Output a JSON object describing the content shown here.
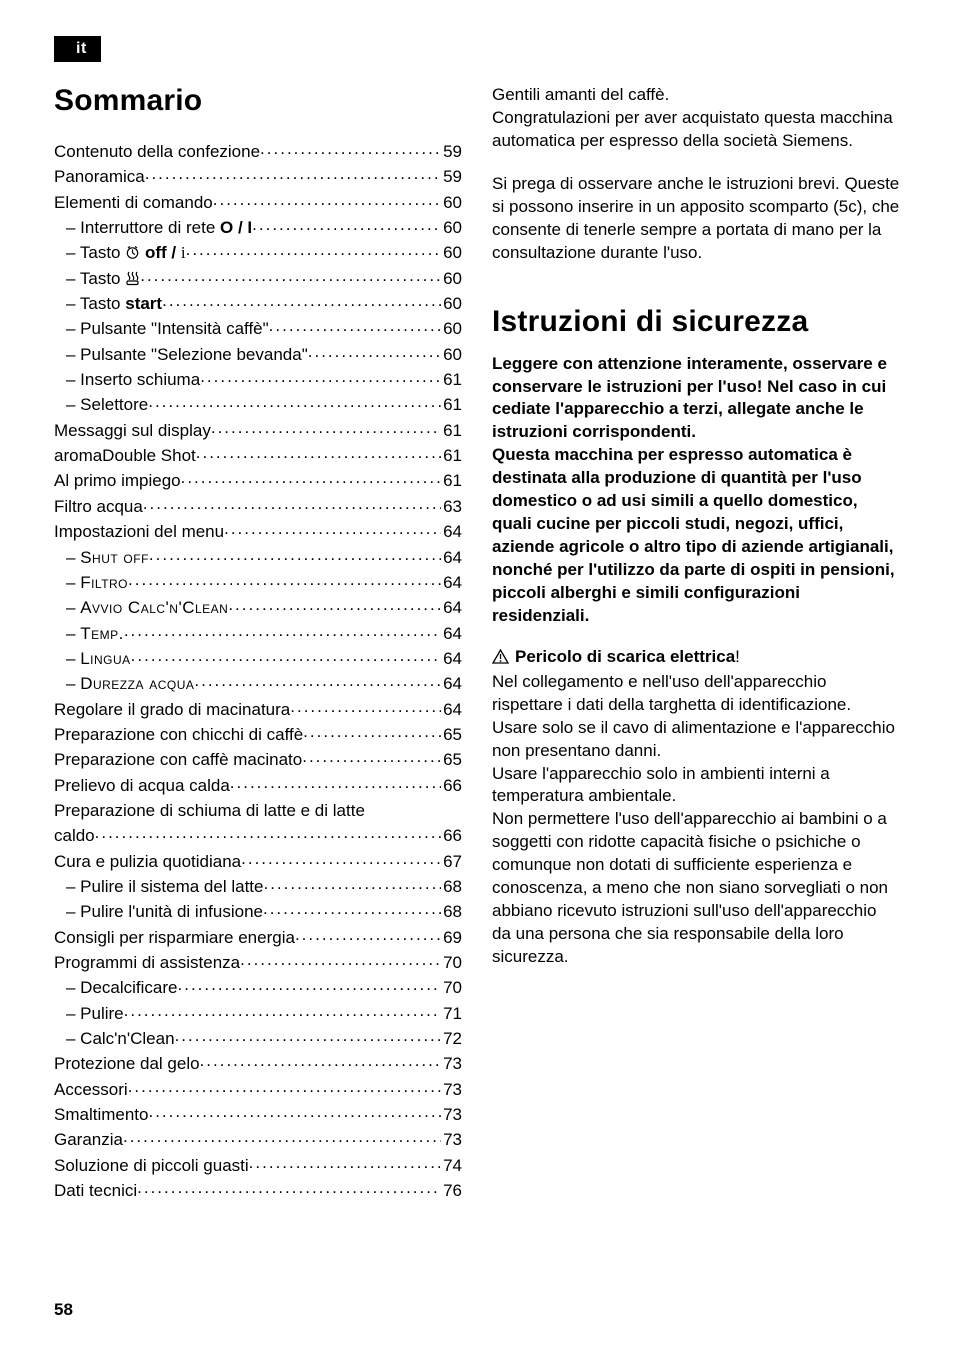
{
  "langTag": "it",
  "left": {
    "heading": "Sommario",
    "toc": [
      {
        "label": "Contenuto della confezione",
        "page": "59"
      },
      {
        "label": "Panoramica",
        "page": "59"
      },
      {
        "label": "Elementi di comando",
        "page": "60"
      },
      {
        "indent": true,
        "prefix": "– ",
        "label": "Interruttore di rete ",
        "labelExtraBold": "O / I",
        "page": "60"
      },
      {
        "indent": true,
        "prefix": "– ",
        "label": "Tasto ",
        "icon": "clock",
        "labelAfterIcon": " ",
        "labelExtraBold": "off / ",
        "labelExtraRaw": "i",
        "page": "60"
      },
      {
        "indent": true,
        "prefix": "– ",
        "label": "Tasto ",
        "icon": "steam",
        "page": "60"
      },
      {
        "indent": true,
        "prefix": "– ",
        "label": "Tasto ",
        "labelExtraBold": "start",
        "page": "60"
      },
      {
        "indent": true,
        "prefix": "– ",
        "label": "Pulsante \"Intensità caffè\"",
        "page": "60"
      },
      {
        "indent": true,
        "prefix": "– ",
        "label": "Pulsante \"Selezione bevanda\"",
        "page": "60"
      },
      {
        "indent": true,
        "prefix": "– ",
        "label": "Inserto schiuma",
        "page": "61"
      },
      {
        "indent": true,
        "prefix": "– ",
        "label": "Selettore",
        "page": "61"
      },
      {
        "label": "Messaggi sul display",
        "page": "61"
      },
      {
        "label": "aromaDouble Shot",
        "page": "61"
      },
      {
        "label": "Al primo impiego",
        "page": "61"
      },
      {
        "label": "Filtro acqua",
        "page": "63"
      },
      {
        "label": "Impostazioni del menu",
        "page": "64"
      },
      {
        "indent": true,
        "prefix": "– ",
        "sc": "Shut off",
        "page": "64"
      },
      {
        "indent": true,
        "prefix": "– ",
        "sc": "Filtro",
        "page": "64"
      },
      {
        "indent": true,
        "prefix": "– ",
        "sc": "Avvio Calc'n'Clean",
        "page": "64"
      },
      {
        "indent": true,
        "prefix": "– ",
        "sc": "Temp.",
        "page": "64"
      },
      {
        "indent": true,
        "prefix": "– ",
        "sc": "Lingua",
        "page": "64"
      },
      {
        "indent": true,
        "prefix": "– ",
        "sc": "Durezza acqua",
        "page": "64"
      },
      {
        "label": "Regolare il grado di macinatura",
        "page": "64"
      },
      {
        "label": "Preparazione con chicchi di caf﻿fè",
        "page": "65"
      },
      {
        "label": "Preparazione con caffè macinato",
        "page": "65"
      },
      {
        "label": "Prelievo di acqua calda",
        "page": "66"
      },
      {
        "label": "Preparazione di schiuma di latte e di latte",
        "noleader": true
      },
      {
        "label": "caldo",
        "page": "66"
      },
      {
        "label": "Cura e pulizia quotidiana",
        "page": "67"
      },
      {
        "indent": true,
        "prefix": "– ",
        "label": "Pulire il sistema del latte",
        "page": "68"
      },
      {
        "indent": true,
        "prefix": "– ",
        "label": "Pulire l'unità di infusione",
        "page": "68"
      },
      {
        "label": "Consigli per risparmiare energia",
        "page": "69"
      },
      {
        "label": "Programmi di assistenza",
        "page": "70"
      },
      {
        "indent": true,
        "prefix": "– ",
        "label": "Decalciﬁcare",
        "page": "70"
      },
      {
        "indent": true,
        "prefix": "– ",
        "label": "Pulire",
        "page": "71"
      },
      {
        "indent": true,
        "prefix": "– ",
        "label": "Calc'n'Clean",
        "page": "72"
      },
      {
        "label": "Protezione dal gelo",
        "page": "73"
      },
      {
        "label": "Accessori",
        "page": "73"
      },
      {
        "label": "Smaltimento",
        "page": "73"
      },
      {
        "label": "Garanzia",
        "page": "73"
      },
      {
        "label": "Soluzione di piccoli guasti",
        "page": "74"
      },
      {
        "label": "Dati tecnici",
        "page": "76"
      }
    ]
  },
  "right": {
    "intro1": "Gentili amanti del caffè.",
    "intro2": "Congratulazioni per aver acquistato questa macchina automatica per espresso della società Siemens.",
    "intro3": "Si prega di osservare anche le istruzioni brevi. Queste si possono inserire in un apposito scomparto (5c), che consente di tenerle sempre a portata di mano per la consultazione durante l'uso.",
    "heading": "Istruzioni di sicurezza",
    "boldPara": "Leggere con attenzione interamente, osservare e conservare le istruzioni per l'uso! Nel caso in cui cediate l'apparecchio a terzi, allegate anche le istruzioni corrispondenti.\nQuesta macchina per espresso automatica è destinata alla produzione di quantità per l'uso domestico o ad usi simili a quello domestico, quali cucine per piccoli studi, negozi, ufﬁci, aziende agricole o altro tipo di aziende artigianali, nonché per l'utilizzo da parte di ospiti in pensioni, piccoli alberghi e simili conﬁgurazioni residenziali.",
    "warnLabel": "Pericolo di scarica elettrica",
    "warnExcl": "!",
    "warnBody": "Nel collegamento e nell'uso dell'apparecchio rispettare i dati della targhetta di identiﬁcazione.\nUsare solo se il cavo di alimentazione e l'apparecchio non presentano danni.\nUsare l'apparecchio solo in ambienti interni a temperatura ambientale.\nNon permettere l'uso dell'apparecchio ai bambini o a soggetti con ridotte capacità ﬁsiche o psichiche o comunque non dotati di sufﬁciente esperienza e conoscenza, a meno che non siano sorvegliati o non abbiano ricevuto istruzioni sull'uso dell'apparecchio da una persona che sia responsabile della loro sicurezza."
  },
  "footer": "58",
  "colors": {
    "text": "#000000",
    "bg": "#ffffff",
    "tagBg": "#000000",
    "tagFg": "#ffffff"
  },
  "fonts": {
    "body_pt": 17,
    "h1_pt": 30
  }
}
